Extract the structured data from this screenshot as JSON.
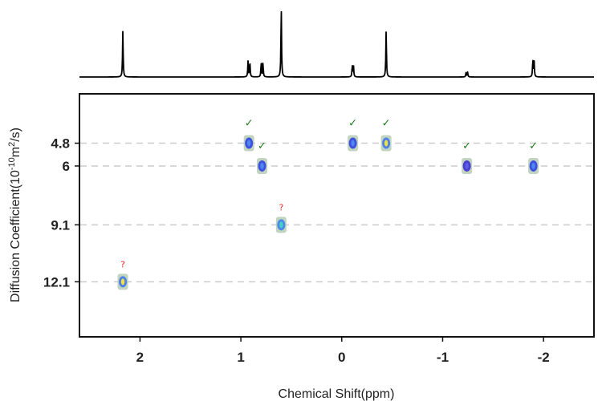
{
  "chart_data": {
    "type": "scatter",
    "title": "",
    "xlabel": "Chemical Shift(ppm)",
    "ylabel": "Diffusion Coefficient(10",
    "ylabel_sup": "-10",
    "ylabel_unit": "m",
    "ylabel_sup2": "2",
    "ylabel_end": "/s)",
    "xlim": [
      2.6,
      -2.5
    ],
    "ylim": [
      2.2,
      15.0
    ],
    "y_inverted": true,
    "x_ticks": [
      2,
      1,
      0,
      -1,
      -2
    ],
    "x_tick_labels": [
      "2",
      "1",
      "0",
      "-1",
      "-2"
    ],
    "y_ticks": [
      4.8,
      6,
      9.1,
      12.1
    ],
    "y_tick_labels": [
      "4.8",
      "6",
      "9.1",
      "12.1"
    ],
    "y_gridlines": true,
    "points": [
      {
        "x": 2.17,
        "y": 12.1,
        "mark": "?",
        "palette": "yellow"
      },
      {
        "x": 0.92,
        "y": 4.8,
        "mark": "✓",
        "palette": "blue"
      },
      {
        "x": 0.79,
        "y": 6.0,
        "mark": "✓",
        "palette": "blue"
      },
      {
        "x": 0.6,
        "y": 9.1,
        "mark": "?",
        "palette": "cyan"
      },
      {
        "x": -0.11,
        "y": 4.8,
        "mark": "✓",
        "palette": "blue"
      },
      {
        "x": -0.44,
        "y": 4.8,
        "mark": "✓",
        "palette": "yellow"
      },
      {
        "x": -1.24,
        "y": 6.0,
        "mark": "✓",
        "palette": "purple"
      },
      {
        "x": -1.9,
        "y": 6.0,
        "mark": "✓",
        "palette": "blue"
      }
    ],
    "spectrum_peaks": [
      {
        "x": 2.17,
        "h": 0.65,
        "split": 0
      },
      {
        "x": 0.92,
        "h": 0.22,
        "split": 0.018
      },
      {
        "x": 0.79,
        "h": 0.2,
        "split": 0.018
      },
      {
        "x": 0.6,
        "h": 1.0,
        "split": 0
      },
      {
        "x": -0.11,
        "h": 0.16,
        "split": 0.012
      },
      {
        "x": -0.44,
        "h": 0.66,
        "split": 0
      },
      {
        "x": -1.24,
        "h": 0.07,
        "split": 0.015
      },
      {
        "x": -1.9,
        "h": 0.24,
        "split": 0.012
      }
    ],
    "colors": {
      "check": "#1b7a1b",
      "question": "#ff2a2a",
      "grid": "#cccccc",
      "axis": "#111111",
      "spectrum": "#000000"
    }
  }
}
